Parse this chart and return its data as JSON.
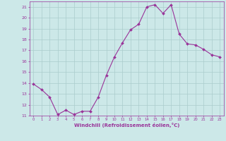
{
  "x": [
    0,
    1,
    2,
    3,
    4,
    5,
    6,
    7,
    8,
    9,
    10,
    11,
    12,
    13,
    14,
    15,
    16,
    17,
    18,
    19,
    20,
    21,
    22,
    23
  ],
  "y": [
    13.9,
    13.4,
    12.7,
    11.1,
    11.5,
    11.1,
    11.4,
    11.4,
    12.7,
    14.7,
    16.4,
    17.7,
    18.9,
    19.4,
    21.0,
    21.2,
    20.4,
    21.2,
    18.5,
    17.6,
    17.5,
    17.1,
    16.6,
    16.4
  ],
  "line_color": "#993399",
  "marker": "D",
  "marker_size": 2,
  "bg_color": "#cce8e8",
  "grid_color": "#aacccc",
  "xlabel": "Windchill (Refroidissement éolien,°C)",
  "xlabel_color": "#993399",
  "tick_color": "#993399",
  "ylim": [
    11,
    21.5
  ],
  "xlim": [
    -0.5,
    23.5
  ],
  "yticks": [
    11,
    12,
    13,
    14,
    15,
    16,
    17,
    18,
    19,
    20,
    21
  ],
  "xticks": [
    0,
    1,
    2,
    3,
    4,
    5,
    6,
    7,
    8,
    9,
    10,
    11,
    12,
    13,
    14,
    15,
    16,
    17,
    18,
    19,
    20,
    21,
    22,
    23
  ]
}
